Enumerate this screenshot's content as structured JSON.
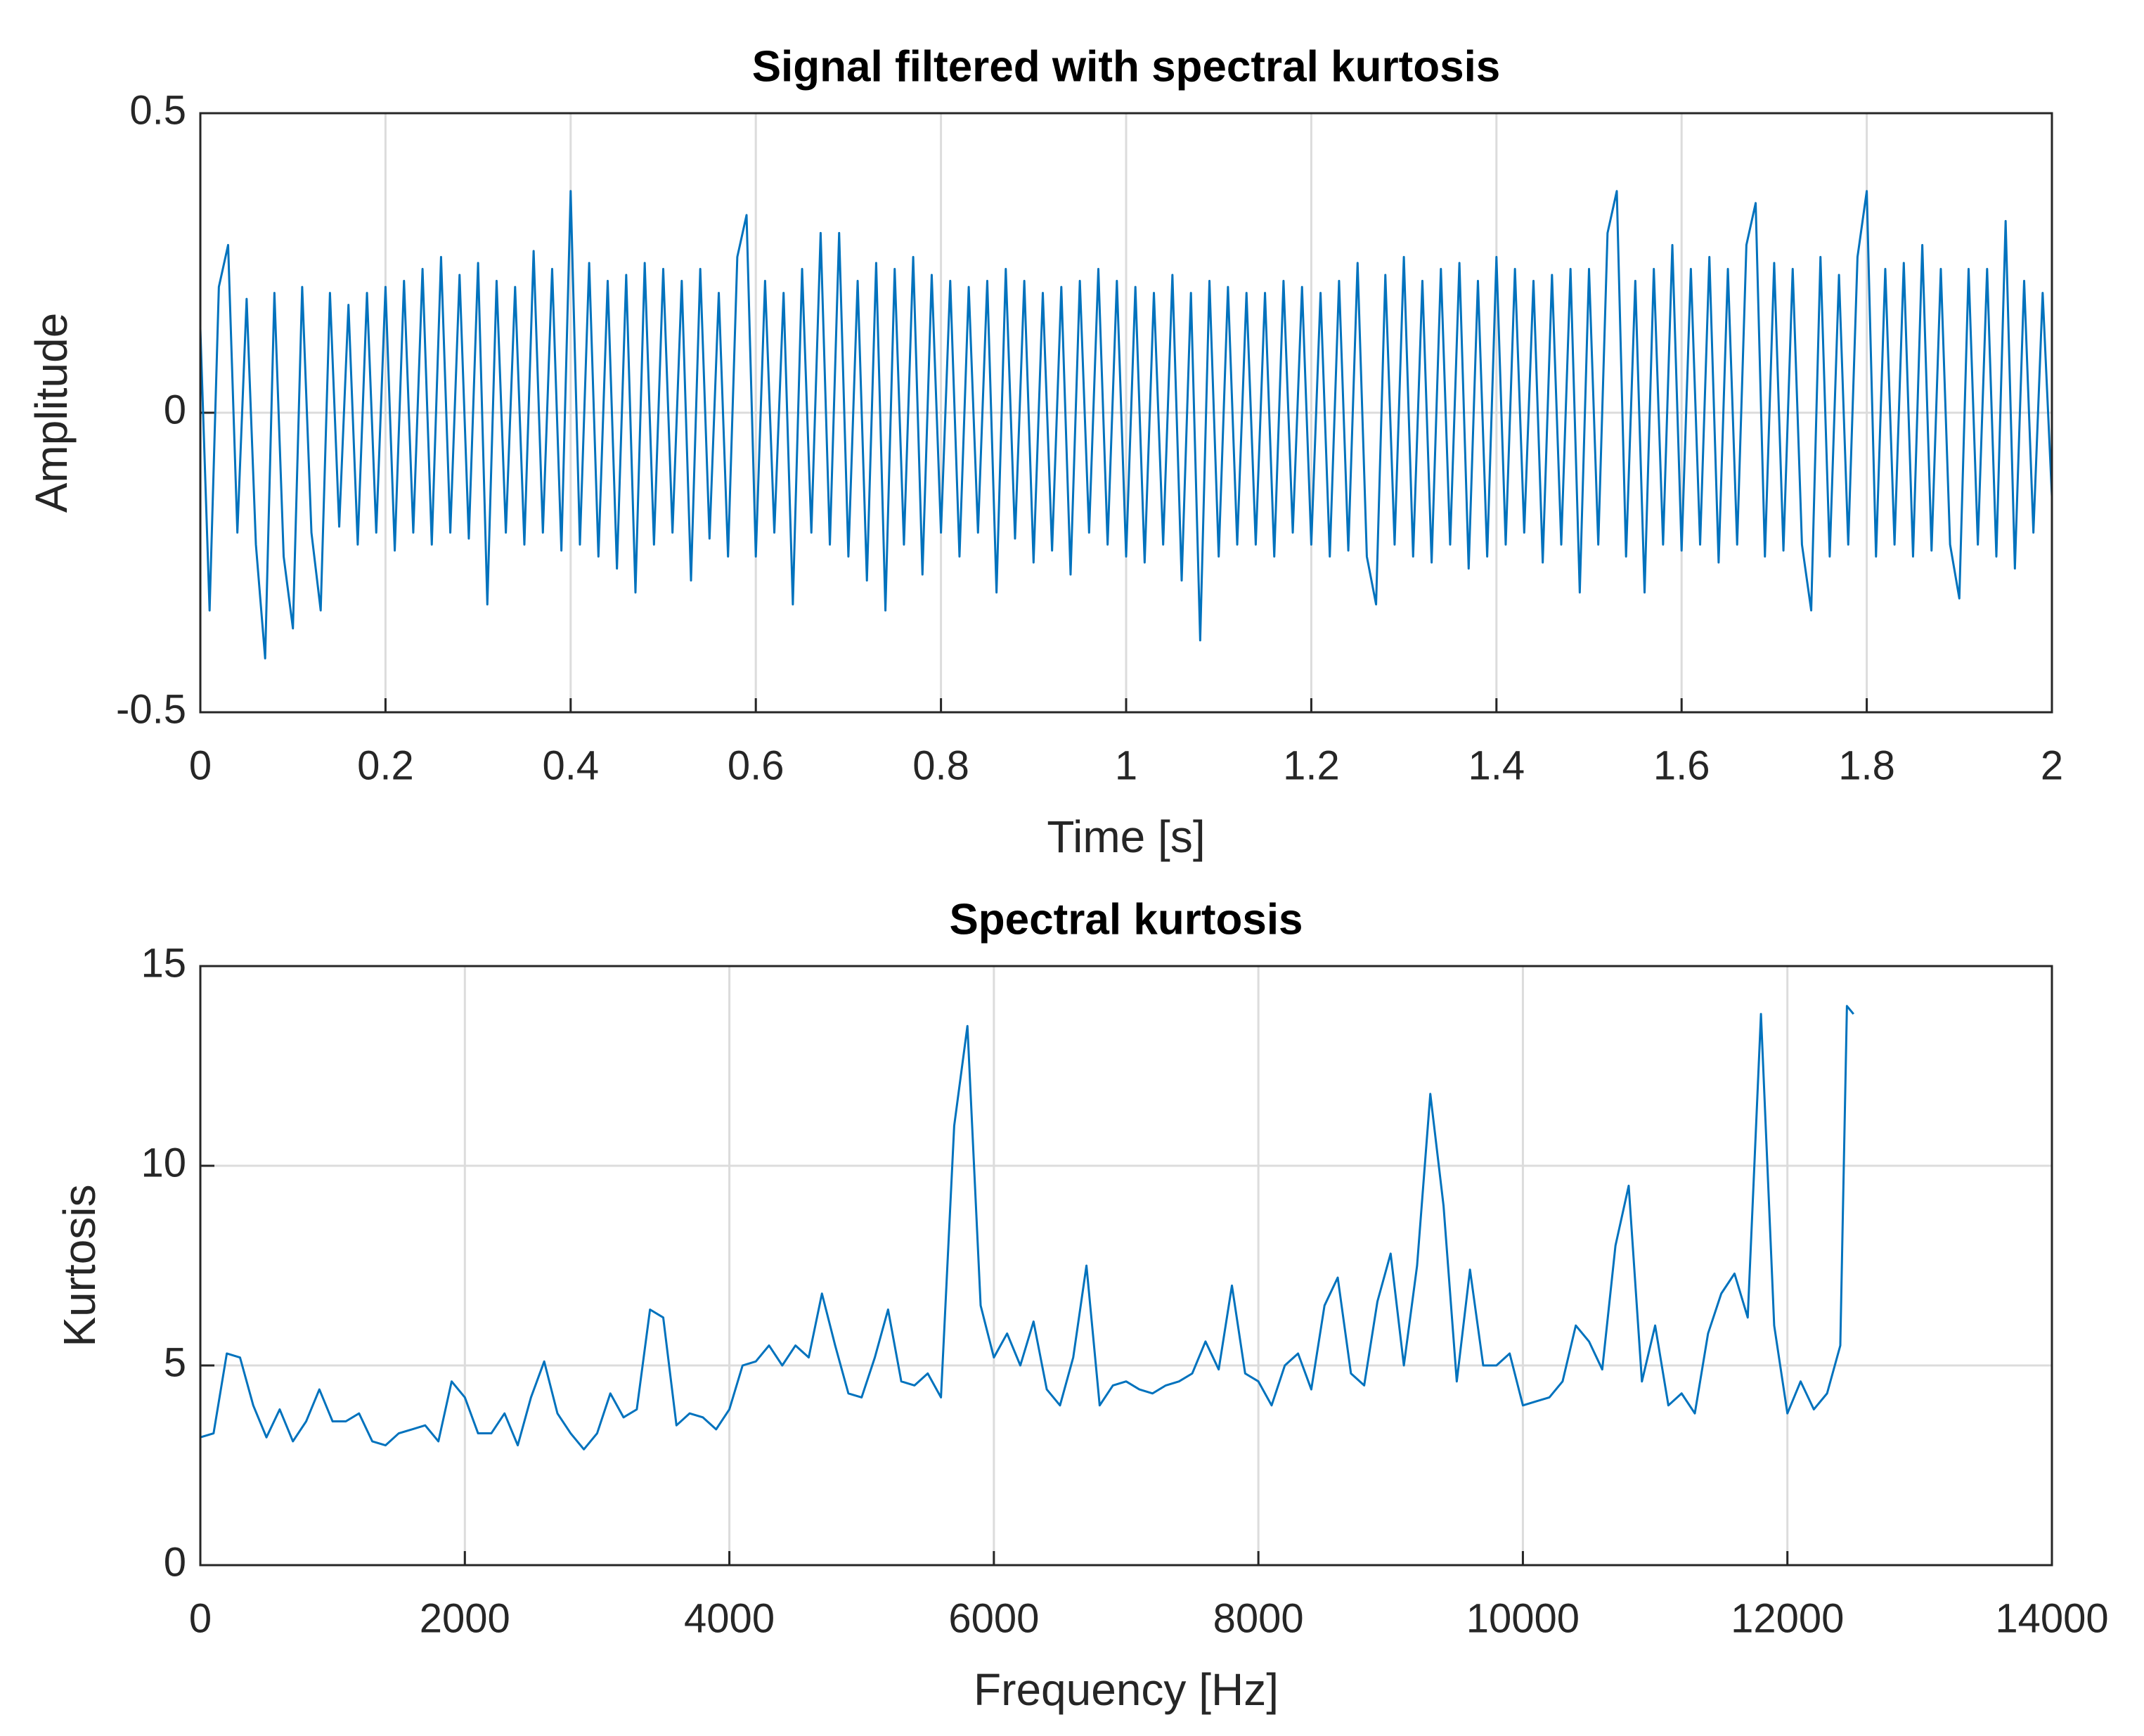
{
  "chart_data": [
    {
      "type": "line",
      "title": "Signal filtered with spectral kurtosis",
      "xlabel": "Time [s]",
      "ylabel": "Amplitude",
      "xlim": [
        0,
        2
      ],
      "ylim": [
        -0.5,
        0.5
      ],
      "xticks": [
        0,
        0.2,
        0.4,
        0.6,
        0.8,
        1,
        1.2,
        1.4,
        1.6,
        1.8,
        2
      ],
      "yticks": [
        -0.5,
        0,
        0.5
      ],
      "grid": true,
      "x": [
        0,
        0.01,
        0.02,
        0.03,
        0.04,
        0.05,
        0.06,
        0.07,
        0.08,
        0.09,
        0.1,
        0.11,
        0.12,
        0.13,
        0.14,
        0.15,
        0.16,
        0.17,
        0.18,
        0.19,
        0.2,
        0.21,
        0.22,
        0.23,
        0.24,
        0.25,
        0.26,
        0.27,
        0.28,
        0.29,
        0.3,
        0.31,
        0.32,
        0.33,
        0.34,
        0.35,
        0.36,
        0.37,
        0.38,
        0.39,
        0.4,
        0.41,
        0.42,
        0.43,
        0.44,
        0.45,
        0.46,
        0.47,
        0.48,
        0.49,
        0.5,
        0.51,
        0.52,
        0.53,
        0.54,
        0.55,
        0.56,
        0.57,
        0.58,
        0.59,
        0.6,
        0.61,
        0.62,
        0.63,
        0.64,
        0.65,
        0.66,
        0.67,
        0.68,
        0.69,
        0.7,
        0.71,
        0.72,
        0.73,
        0.74,
        0.75,
        0.76,
        0.77,
        0.78,
        0.79,
        0.8,
        0.81,
        0.82,
        0.83,
        0.84,
        0.85,
        0.86,
        0.87,
        0.88,
        0.89,
        0.9,
        0.91,
        0.92,
        0.93,
        0.94,
        0.95,
        0.96,
        0.97,
        0.98,
        0.99,
        1,
        1.01,
        1.02,
        1.03,
        1.04,
        1.05,
        1.06,
        1.07,
        1.08,
        1.09,
        1.1,
        1.11,
        1.12,
        1.13,
        1.14,
        1.15,
        1.16,
        1.17,
        1.18,
        1.19,
        1.2,
        1.21,
        1.22,
        1.23,
        1.24,
        1.25,
        1.26,
        1.27,
        1.28,
        1.29,
        1.3,
        1.31,
        1.32,
        1.33,
        1.34,
        1.35,
        1.36,
        1.37,
        1.38,
        1.39,
        1.4,
        1.41,
        1.42,
        1.43,
        1.44,
        1.45,
        1.46,
        1.47,
        1.48,
        1.49,
        1.5,
        1.51,
        1.52,
        1.53,
        1.54,
        1.55,
        1.56,
        1.57,
        1.58,
        1.59,
        1.6,
        1.61,
        1.62,
        1.63,
        1.64,
        1.65,
        1.66,
        1.67,
        1.68,
        1.69,
        1.7,
        1.71,
        1.72,
        1.73,
        1.74,
        1.75,
        1.76,
        1.77,
        1.78,
        1.79,
        1.8,
        1.81,
        1.82,
        1.83,
        1.84,
        1.85,
        1.86,
        1.87,
        1.88,
        1.89,
        1.9,
        1.91,
        1.92,
        1.93,
        1.94,
        1.95,
        1.96,
        1.97,
        1.98,
        1.99,
        2
      ],
      "series": [
        {
          "color": "#0072bd",
          "values": [
            0.14,
            -0.33,
            0.21,
            0.28,
            -0.2,
            0.19,
            -0.22,
            -0.41,
            0.2,
            -0.24,
            -0.36,
            0.21,
            -0.2,
            -0.33,
            0.2,
            -0.19,
            0.18,
            -0.22,
            0.2,
            -0.2,
            0.21,
            -0.23,
            0.22,
            -0.2,
            0.24,
            -0.22,
            0.26,
            -0.2,
            0.23,
            -0.21,
            0.25,
            -0.32,
            0.22,
            -0.2,
            0.21,
            -0.22,
            0.27,
            -0.2,
            0.24,
            -0.23,
            0.37,
            -0.22,
            0.25,
            -0.24,
            0.22,
            -0.26,
            0.23,
            -0.3,
            0.25,
            -0.22,
            0.24,
            -0.2,
            0.22,
            -0.28,
            0.24,
            -0.21,
            0.2,
            -0.24,
            0.26,
            0.33,
            -0.24,
            0.22,
            -0.2,
            0.2,
            -0.32,
            0.24,
            -0.2,
            0.3,
            -0.22,
            0.3,
            -0.24,
            0.22,
            -0.28,
            0.25,
            -0.33,
            0.24,
            -0.22,
            0.26,
            -0.27,
            0.23,
            -0.2,
            0.22,
            -0.24,
            0.21,
            -0.2,
            0.22,
            -0.3,
            0.24,
            -0.21,
            0.22,
            -0.25,
            0.2,
            -0.23,
            0.21,
            -0.27,
            0.22,
            -0.2,
            0.24,
            -0.22,
            0.22,
            -0.24,
            0.21,
            -0.25,
            0.2,
            -0.22,
            0.23,
            -0.28,
            0.2,
            -0.38,
            0.22,
            -0.24,
            0.21,
            -0.22,
            0.2,
            -0.22,
            0.2,
            -0.24,
            0.22,
            -0.2,
            0.21,
            -0.22,
            0.2,
            -0.24,
            0.22,
            -0.23,
            0.25,
            -0.24,
            -0.32,
            0.23,
            -0.22,
            0.26,
            -0.24,
            0.22,
            -0.25,
            0.24,
            -0.22,
            0.25,
            -0.26,
            0.22,
            -0.24,
            0.26,
            -0.22,
            0.24,
            -0.2,
            0.22,
            -0.25,
            0.23,
            -0.22,
            0.24,
            -0.3,
            0.24,
            -0.22,
            0.3,
            0.37,
            -0.24,
            0.22,
            -0.3,
            0.24,
            -0.22,
            0.28,
            -0.23,
            0.24,
            -0.22,
            0.26,
            -0.25,
            0.24,
            -0.22,
            0.28,
            0.35,
            -0.24,
            0.25,
            -0.23,
            0.24,
            -0.22,
            -0.33,
            0.26,
            -0.24,
            0.23,
            -0.22,
            0.26,
            0.37,
            -0.24,
            0.24,
            -0.22,
            0.25,
            -0.24,
            0.28,
            -0.23,
            0.24,
            -0.22,
            -0.31,
            0.24,
            -0.22,
            0.24,
            -0.24,
            0.32,
            -0.26,
            0.22,
            -0.2,
            0.2,
            -0.14
          ]
        }
      ]
    },
    {
      "type": "line",
      "title": "Spectral kurtosis",
      "xlabel": "Frequency [Hz]",
      "ylabel": "Kurtosis",
      "xlim": [
        0,
        14000
      ],
      "ylim": [
        0,
        15
      ],
      "xticks": [
        0,
        2000,
        4000,
        6000,
        8000,
        10000,
        12000,
        14000
      ],
      "yticks": [
        0,
        5,
        10,
        15
      ],
      "grid": true,
      "x": [
        0,
        100,
        200,
        300,
        400,
        500,
        600,
        700,
        800,
        900,
        1000,
        1100,
        1200,
        1300,
        1400,
        1500,
        1600,
        1700,
        1800,
        1900,
        2000,
        2100,
        2200,
        2300,
        2400,
        2500,
        2600,
        2700,
        2800,
        2900,
        3000,
        3100,
        3200,
        3300,
        3400,
        3500,
        3600,
        3700,
        3800,
        3900,
        4000,
        4100,
        4200,
        4300,
        4400,
        4500,
        4600,
        4700,
        4800,
        4900,
        5000,
        5100,
        5200,
        5300,
        5400,
        5500,
        5600,
        5700,
        5800,
        5900,
        6000,
        6100,
        6200,
        6300,
        6400,
        6500,
        6600,
        6700,
        6800,
        6900,
        7000,
        7100,
        7200,
        7300,
        7400,
        7500,
        7600,
        7700,
        7800,
        7900,
        8000,
        8100,
        8200,
        8300,
        8400,
        8500,
        8600,
        8700,
        8800,
        8900,
        9000,
        9100,
        9200,
        9300,
        9400,
        9500,
        9600,
        9700,
        9800,
        9900,
        10000,
        10100,
        10200,
        10300,
        10400,
        10500,
        10600,
        10700,
        10800,
        10900,
        11000,
        11100,
        11200,
        11300,
        11400,
        11500,
        11600,
        11700,
        11800,
        11900,
        12000,
        12100,
        12200,
        12300,
        12400,
        12450,
        12500
      ],
      "series": [
        {
          "color": "#0072bd",
          "values": [
            3.2,
            3.3,
            5.3,
            5.2,
            4.0,
            3.2,
            3.9,
            3.1,
            3.6,
            4.4,
            3.6,
            3.6,
            3.8,
            3.1,
            3.0,
            3.3,
            3.4,
            3.5,
            3.1,
            4.6,
            4.2,
            3.3,
            3.3,
            3.8,
            3.0,
            4.2,
            5.1,
            3.8,
            3.3,
            2.9,
            3.3,
            4.3,
            3.7,
            3.9,
            6.4,
            6.2,
            3.5,
            3.8,
            3.7,
            3.4,
            3.9,
            5.0,
            5.1,
            5.5,
            5.0,
            5.5,
            5.2,
            6.8,
            5.5,
            4.3,
            4.2,
            5.2,
            6.4,
            4.6,
            4.5,
            4.8,
            4.2,
            11.0,
            13.5,
            6.5,
            5.2,
            5.8,
            5.0,
            6.1,
            4.4,
            4.0,
            5.2,
            7.5,
            4.0,
            4.5,
            4.6,
            4.4,
            4.3,
            4.5,
            4.6,
            4.8,
            5.6,
            4.9,
            7.0,
            4.8,
            4.6,
            4.0,
            5.0,
            5.3,
            4.4,
            6.5,
            7.2,
            4.8,
            4.5,
            6.6,
            7.8,
            5.0,
            7.5,
            11.8,
            9.0,
            4.6,
            7.4,
            5.0,
            5.0,
            5.3,
            4.0,
            4.1,
            4.2,
            4.6,
            6.0,
            5.6,
            4.9,
            8.0,
            9.5,
            4.6,
            6.0,
            4.0,
            4.3,
            3.8,
            5.8,
            6.8,
            7.3,
            6.2,
            13.8,
            6.0,
            3.8,
            4.6,
            3.9,
            4.3,
            5.5,
            14.0,
            13.8
          ]
        }
      ]
    }
  ]
}
